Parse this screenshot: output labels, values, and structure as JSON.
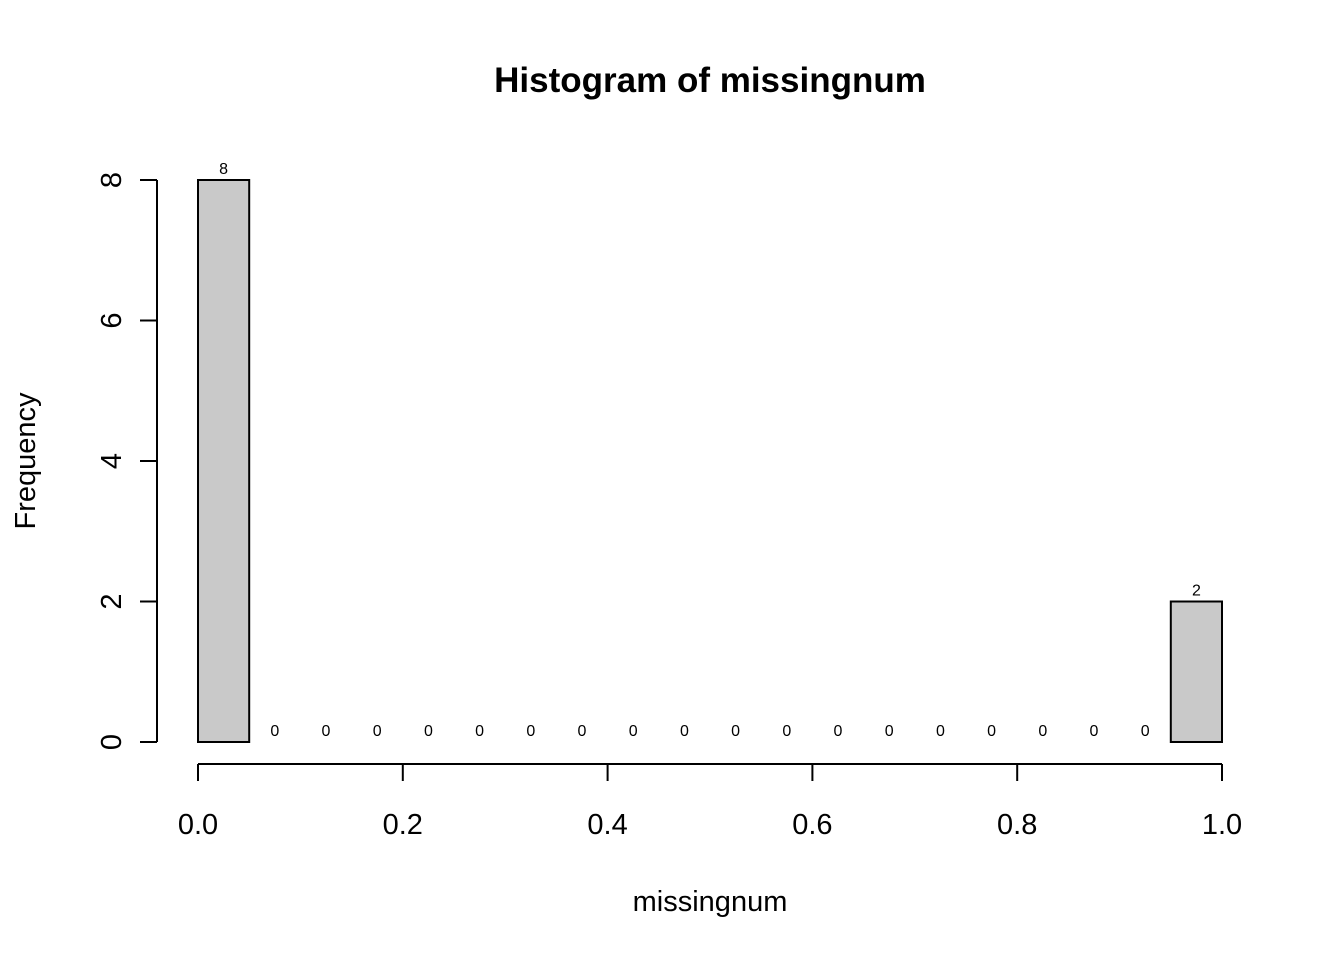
{
  "chart_data": {
    "type": "bar",
    "title": "Histogram of missingnum",
    "xlabel": "missingnum",
    "ylabel": "Frequency",
    "bins": [
      {
        "start": 0.0,
        "end": 0.05,
        "count": 8
      },
      {
        "start": 0.05,
        "end": 0.1,
        "count": 0
      },
      {
        "start": 0.1,
        "end": 0.15,
        "count": 0
      },
      {
        "start": 0.15,
        "end": 0.2,
        "count": 0
      },
      {
        "start": 0.2,
        "end": 0.25,
        "count": 0
      },
      {
        "start": 0.25,
        "end": 0.3,
        "count": 0
      },
      {
        "start": 0.3,
        "end": 0.35,
        "count": 0
      },
      {
        "start": 0.35,
        "end": 0.4,
        "count": 0
      },
      {
        "start": 0.4,
        "end": 0.45,
        "count": 0
      },
      {
        "start": 0.45,
        "end": 0.5,
        "count": 0
      },
      {
        "start": 0.5,
        "end": 0.55,
        "count": 0
      },
      {
        "start": 0.55,
        "end": 0.6,
        "count": 0
      },
      {
        "start": 0.6,
        "end": 0.65,
        "count": 0
      },
      {
        "start": 0.65,
        "end": 0.7,
        "count": 0
      },
      {
        "start": 0.7,
        "end": 0.75,
        "count": 0
      },
      {
        "start": 0.75,
        "end": 0.8,
        "count": 0
      },
      {
        "start": 0.8,
        "end": 0.85,
        "count": 0
      },
      {
        "start": 0.85,
        "end": 0.9,
        "count": 0
      },
      {
        "start": 0.9,
        "end": 0.95,
        "count": 0
      },
      {
        "start": 0.95,
        "end": 1.0,
        "count": 2
      }
    ],
    "xlim": [
      0,
      1
    ],
    "ylim": [
      0,
      8
    ],
    "x_ticks": [
      "0.0",
      "0.2",
      "0.4",
      "0.6",
      "0.8",
      "1.0"
    ],
    "y_ticks": [
      "0",
      "2",
      "4",
      "6",
      "8"
    ],
    "bar_color": "#c9c9c9",
    "grid": false,
    "legend": "none"
  }
}
